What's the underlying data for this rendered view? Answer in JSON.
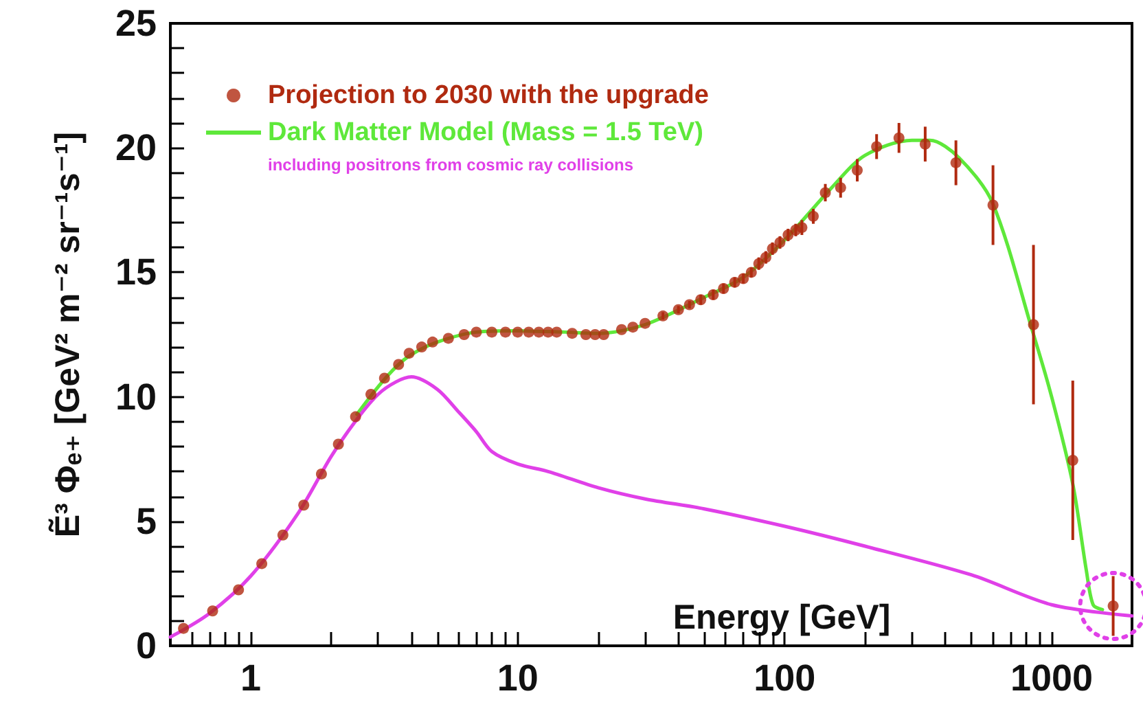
{
  "chart_data": {
    "type": "scatter",
    "xlabel": "Energy [GeV]",
    "ylabel": "Ẽ³ Φₑ₊ [GeV² m⁻² sr⁻¹s⁻¹]",
    "log": "x",
    "grid": false,
    "legend": "top left",
    "xlim": [
      0.5,
      2000
    ],
    "ylim": [
      0,
      25
    ],
    "xticks": [
      {
        "value": 0.5,
        "label": null
      },
      {
        "value": 0.6,
        "label": null
      },
      {
        "value": 0.7,
        "label": null
      },
      {
        "value": 0.8,
        "label": null
      },
      {
        "value": 0.9,
        "label": null
      },
      1,
      {
        "value": 2,
        "label": null
      },
      {
        "value": 3,
        "label": null
      },
      {
        "value": 4,
        "label": null
      },
      {
        "value": 5,
        "label": null
      },
      {
        "value": 6,
        "label": null
      },
      {
        "value": 7,
        "label": null
      },
      {
        "value": 8,
        "label": null
      },
      {
        "value": 9,
        "label": null
      },
      10,
      {
        "value": 20,
        "label": null
      },
      {
        "value": 30,
        "label": null
      },
      {
        "value": 40,
        "label": null
      },
      {
        "value": 50,
        "label": null
      },
      {
        "value": 60,
        "label": null
      },
      {
        "value": 70,
        "label": null
      },
      {
        "value": 80,
        "label": null
      },
      {
        "value": 90,
        "label": null
      },
      100,
      {
        "value": 200,
        "label": null
      },
      {
        "value": 300,
        "label": null
      },
      {
        "value": 400,
        "label": null
      },
      {
        "value": 500,
        "label": null
      },
      {
        "value": 600,
        "label": null
      },
      {
        "value": 700,
        "label": null
      },
      {
        "value": 800,
        "label": null
      },
      {
        "value": 900,
        "label": null
      },
      1000,
      {
        "value": 2000,
        "label": null
      }
    ],
    "yticks": [
      0,
      {
        "value": 1,
        "label": null
      },
      {
        "value": 2,
        "label": null
      },
      {
        "value": 3,
        "label": null
      },
      {
        "value": 4,
        "label": null
      },
      5,
      {
        "value": 6,
        "label": null
      },
      {
        "value": 7,
        "label": null
      },
      {
        "value": 8,
        "label": null
      },
      {
        "value": 9,
        "label": null
      },
      10,
      {
        "value": 11,
        "label": null
      },
      {
        "value": 12,
        "label": null
      },
      {
        "value": 13,
        "label": null
      },
      {
        "value": 14,
        "label": null
      },
      15,
      {
        "value": 16,
        "label": null
      },
      {
        "value": 17,
        "label": null
      },
      {
        "value": 18,
        "label": null
      },
      {
        "value": 19,
        "label": null
      },
      20,
      {
        "value": 21,
        "label": null
      },
      {
        "value": 22,
        "label": null
      },
      {
        "value": 23,
        "label": null
      },
      {
        "value": 24,
        "label": null
      },
      25
    ],
    "series": [
      {
        "name": "Projection to 2030 with the upgrade",
        "color": "#b02a10",
        "marker": "circle",
        "x": [
          0.56,
          0.72,
          0.9,
          1.1,
          1.32,
          1.58,
          1.84,
          2.13,
          2.47,
          2.82,
          3.17,
          3.58,
          3.92,
          4.37,
          4.8,
          5.5,
          6.3,
          7,
          8,
          9,
          10,
          11,
          12,
          13,
          14,
          16,
          18,
          19.5,
          21,
          24.5,
          27,
          30,
          35,
          40,
          44,
          48.5,
          54,
          59,
          65,
          70,
          75,
          80,
          85,
          90,
          96,
          103,
          110,
          116,
          128,
          142,
          162,
          187,
          221,
          268,
          336,
          438,
          603,
          855,
          1200,
          1700
        ],
        "values": [
          0.7,
          1.4,
          2.25,
          3.3,
          4.45,
          5.65,
          6.9,
          8.1,
          9.2,
          10.1,
          10.75,
          11.3,
          11.75,
          12.0,
          12.2,
          12.35,
          12.5,
          12.6,
          12.6,
          12.6,
          12.6,
          12.6,
          12.6,
          12.6,
          12.6,
          12.55,
          12.5,
          12.5,
          12.5,
          12.7,
          12.8,
          12.95,
          13.25,
          13.5,
          13.7,
          13.9,
          14.1,
          14.35,
          14.6,
          14.75,
          15.0,
          15.35,
          15.6,
          15.95,
          16.2,
          16.5,
          16.7,
          16.8,
          17.25,
          18.2,
          18.4,
          19.1,
          20.05,
          20.4,
          20.15,
          19.4,
          17.7,
          12.9,
          7.45,
          1.6
        ],
        "errors": [
          null,
          null,
          null,
          null,
          null,
          null,
          null,
          null,
          null,
          null,
          null,
          null,
          null,
          null,
          null,
          null,
          null,
          null,
          null,
          null,
          null,
          null,
          null,
          null,
          null,
          null,
          null,
          null,
          null,
          null,
          null,
          null,
          0.15,
          0.15,
          0.15,
          0.2,
          0.2,
          0.2,
          0.2,
          0.2,
          0.2,
          0.25,
          0.25,
          0.25,
          0.25,
          0.25,
          0.25,
          0.3,
          0.3,
          0.35,
          0.4,
          0.45,
          0.5,
          0.6,
          0.7,
          0.9,
          1.6,
          3.2,
          3.2,
          1.2
        ]
      },
      {
        "name": "Dark Matter Model (Mass = 1.5 TeV)",
        "type": "line",
        "color": "#5ee83a",
        "marker": "none",
        "line_style": "solid",
        "x": [
          2.5,
          3,
          3.5,
          4,
          5,
          7,
          10,
          15,
          20,
          30,
          50,
          70,
          100,
          150,
          200,
          300,
          350,
          450,
          600,
          850,
          1000,
          1200,
          1350,
          1430,
          1550
        ],
        "values": [
          9.3,
          10.4,
          11.2,
          11.7,
          12.2,
          12.6,
          12.65,
          12.6,
          12.55,
          12.9,
          14.0,
          14.8,
          16.3,
          18.4,
          19.7,
          20.3,
          20.3,
          19.6,
          17.8,
          12.6,
          10.0,
          6.5,
          3.0,
          1.65,
          1.45
        ]
      },
      {
        "name": "including positrons from cosmic ray collisions",
        "type": "line",
        "color": "#e040e8",
        "marker": "none",
        "line_style": "solid",
        "x": [
          0.5,
          0.7,
          1,
          1.5,
          2,
          2.5,
          3,
          3.5,
          4,
          5,
          6,
          7,
          8,
          10,
          13,
          20,
          30,
          50,
          100,
          200,
          500,
          1000,
          2000
        ],
        "values": [
          0.35,
          1.3,
          2.8,
          5.3,
          7.6,
          9.1,
          10.1,
          10.6,
          10.8,
          10.3,
          9.4,
          8.6,
          7.8,
          7.3,
          7.0,
          6.35,
          5.9,
          5.5,
          4.8,
          4.0,
          2.85,
          1.65,
          1.2
        ]
      }
    ]
  }
}
